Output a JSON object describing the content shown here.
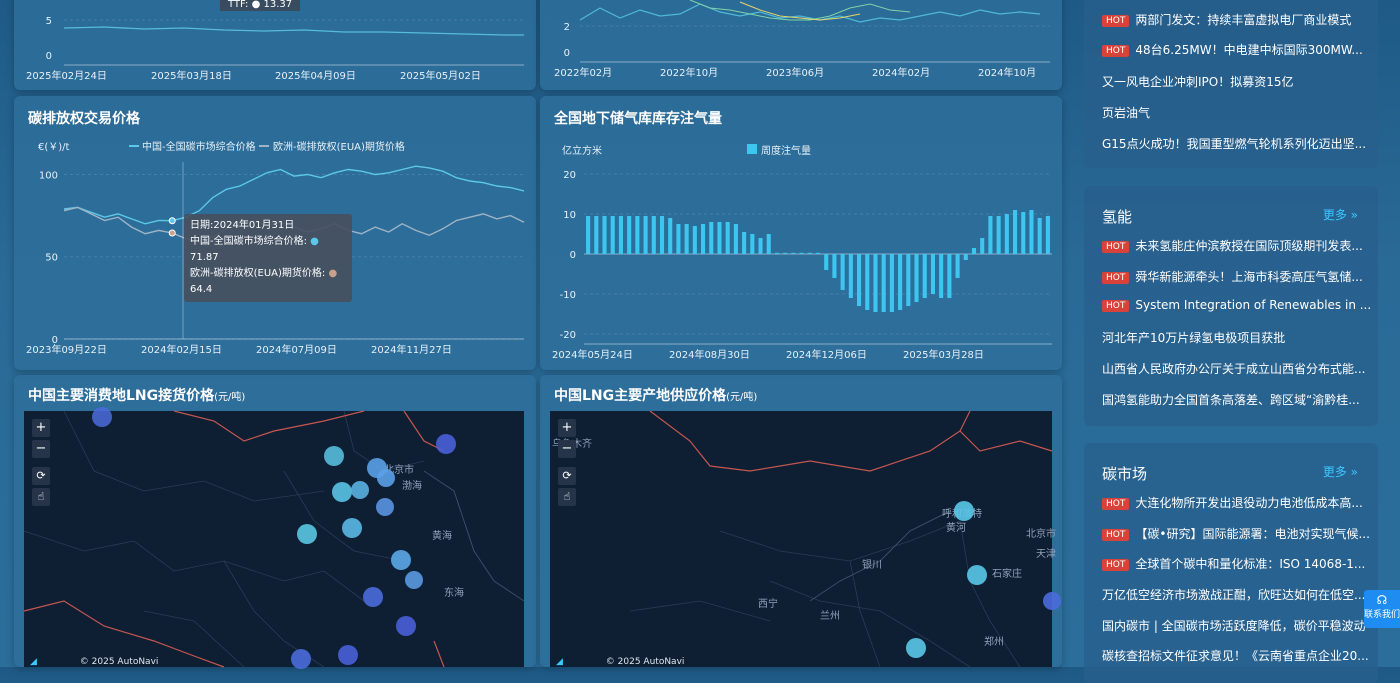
{
  "panel_top_left": {
    "y_ticks": [
      "5",
      "0"
    ],
    "x_ticks": [
      "2025年02月24日",
      "2025年03月18日",
      "2025年04月09日",
      "2025年05月02日"
    ],
    "tooltip_fragment": "TTF: ● 13.37"
  },
  "panel_top_mid": {
    "y_ticks": [
      "2",
      "0"
    ],
    "x_ticks": [
      "2022年02月",
      "2022年10月",
      "2023年06月",
      "2024年02月",
      "2024年10月"
    ]
  },
  "carbon_panel": {
    "title": "碳排放权交易价格",
    "unit": "€(￥)/t",
    "legend": [
      "中国-全国碳市场综合价格",
      "欧洲-碳排放权(EUA)期货价格"
    ],
    "tooltip": {
      "date": "日期:2024年01月31日",
      "line1_label": "中国-全国碳市场综合价格:",
      "line1_value": "71.87",
      "line2_label": "欧洲-碳排放权(EUA)期货价格:",
      "line2_value": "64.4"
    },
    "colors": {
      "china": "#5cc8e8",
      "eu": "#9fb3c4"
    }
  },
  "chart_data": [
    {
      "type": "line",
      "title": "碳排放权交易价格",
      "ylabel": "€(￥)/t",
      "ylim": [
        0,
        110
      ],
      "y_ticks": [
        0,
        50,
        100
      ],
      "x_ticks": [
        "2023年09月22日",
        "2024年02月15日",
        "2024年07月09日",
        "2024年11月27日"
      ],
      "series": [
        {
          "name": "中国-全国碳市场综合价格",
          "values": [
            79,
            80,
            77,
            74,
            76,
            73,
            70,
            72,
            71.87,
            74,
            78,
            86,
            91,
            93,
            97,
            101,
            103,
            99,
            100,
            98,
            101,
            103,
            102,
            100,
            101,
            103,
            105,
            104,
            102,
            98,
            96,
            95,
            93,
            92,
            90
          ]
        },
        {
          "name": "欧洲-碳排放权(EUA)期货价格",
          "values": [
            78,
            80,
            76,
            72,
            74,
            68,
            64,
            66,
            64.4,
            61,
            58,
            62,
            67,
            70,
            72,
            69,
            71,
            68,
            65,
            67,
            70,
            66,
            64,
            68,
            65,
            70,
            66,
            63,
            67,
            72,
            74,
            76,
            73,
            75,
            71
          ]
        }
      ]
    },
    {
      "type": "bar",
      "title": "全国地下储气库库存注气量",
      "ylabel": "亿立方米",
      "ylim": [
        -20,
        20
      ],
      "y_ticks": [
        20,
        10,
        0,
        -10,
        -20
      ],
      "x_ticks": [
        "2024年05月24日",
        "2024年08月30日",
        "2024年12月06日",
        "2025年03月28日"
      ],
      "series": [
        {
          "name": "周度注气量",
          "values": [
            9.5,
            9.5,
            9.5,
            9.5,
            9.5,
            9.5,
            9.5,
            9.5,
            9.5,
            9.5,
            9.0,
            7.5,
            7.5,
            7.0,
            7.5,
            8.0,
            8.0,
            8.0,
            7.5,
            5.5,
            5.0,
            4.0,
            5.0,
            0.3,
            0.3,
            0.3,
            0.3,
            0.3,
            0.3,
            -4,
            -6,
            -9,
            -11,
            -13,
            -14,
            -14.5,
            -14.5,
            -14.5,
            -14,
            -13,
            -12,
            -11,
            -10,
            -11,
            -11,
            -6,
            -1.5,
            1.5,
            4,
            9.5,
            9.5,
            10,
            11,
            10.5,
            11,
            9,
            9.5
          ]
        }
      ]
    }
  ],
  "storage_panel": {
    "title": "全国地下储气库库存注气量",
    "unit": "亿立方米",
    "legend": "周度注气量",
    "bar_color": "#3cc6f0"
  },
  "lng_consumption": {
    "title": "中国主要消费地LNG接货价格",
    "unit": "(元/吨)",
    "labels": [
      "北京市",
      "渤海",
      "黄海",
      "东海"
    ],
    "copyright": "© 2025 AutoNavi"
  },
  "lng_production": {
    "title": "中国LNG主要产地供应价格",
    "unit": "(元/吨)",
    "labels": [
      "乌鲁木齐",
      "呼和浩特",
      "黄河",
      "北京市",
      "天津",
      "银川",
      "石家庄",
      "西宁",
      "兰州",
      "郑州"
    ],
    "copyright": "© 2025 AutoNavi"
  },
  "map_controls": {
    "zoom_in": "+",
    "zoom_out": "−"
  },
  "news_top": {
    "items": [
      {
        "hot": true,
        "text": "两部门发文：持续丰富虚拟电厂商业模式"
      },
      {
        "hot": true,
        "text": "48台6.25MW！中电建中标国际300MW..."
      },
      {
        "hot": false,
        "text": "又一风电企业冲刺IPO！拟募资15亿"
      },
      {
        "hot": false,
        "text": "页岩油气"
      },
      {
        "hot": false,
        "text": "G15点火成功！我国重型燃气轮机系列化迈出坚..."
      }
    ]
  },
  "news_hydrogen": {
    "title": "氢能",
    "more": "更多 »",
    "items": [
      {
        "hot": true,
        "text": "未来氢能庄仲滨教授在国际顶级期刊发表..."
      },
      {
        "hot": true,
        "text": "舜华新能源牵头！上海市科委高压气氢储..."
      },
      {
        "hot": true,
        "text": "System Integration of Renewables in ..."
      },
      {
        "hot": false,
        "text": "河北年产10万片绿氢电极项目获批"
      },
      {
        "hot": false,
        "text": "山西省人民政府办公厅关于成立山西省分布式能..."
      },
      {
        "hot": false,
        "text": "国鸿氢能助力全国首条高落差、跨区域“渝黔桂..."
      }
    ]
  },
  "news_carbon": {
    "title": "碳市场",
    "more": "更多 »",
    "items": [
      {
        "hot": true,
        "text": "大连化物所开发出退役动力电池低成本高..."
      },
      {
        "hot": true,
        "text": "【碳•研究】国际能源署：电池对实现气候..."
      },
      {
        "hot": true,
        "text": "全球首个碳中和量化标准：ISO 14068-1..."
      },
      {
        "hot": false,
        "text": "万亿低空经济市场激战正酣，欣旺达如何在低空..."
      },
      {
        "hot": false,
        "text": "国内碳市 | 全国碳市场活跃度降低，碳价平稳波动"
      },
      {
        "hot": false,
        "text": "碳核查招标文件征求意见！《云南省重点企业20..."
      }
    ]
  },
  "hot_label": "HOT",
  "contact": "联系我们"
}
